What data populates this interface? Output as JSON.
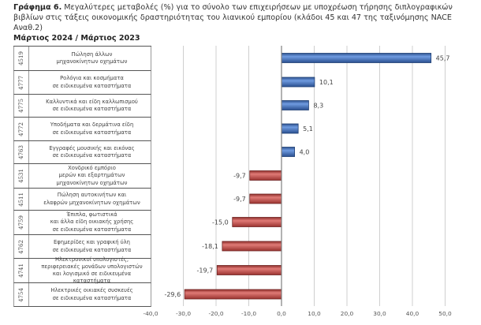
{
  "header": {
    "title_prefix": "Γράφημα 6.",
    "title_text": " Μεγαλύτερες μεταβολές (%) για το σύνολο των επιχειρήσεων με υποχρέωση τήρησης διπλογραφικών βιβλίων στις τάξεις οικονομικής δραστηριότητας του λιανικού εμπορίου (κλάδοι 45 και 47 της ταξινόμησης NACE Αναθ.2)",
    "subtitle": "Μάρτιος 2024 / Μάρτιος 2023"
  },
  "colors": {
    "positive": "#4472c4",
    "negative": "#c0504d",
    "grid": "#cfcfcf",
    "axis": "#7f7f7f"
  },
  "chart_data": {
    "type": "bar",
    "orientation": "horizontal",
    "title": "Μεγαλύτερες μεταβολές (%) — Μάρτιος 2024 / Μάρτιος 2023",
    "xlabel": "",
    "ylabel": "",
    "xlim": [
      -40,
      50
    ],
    "grid": true,
    "xticks": [
      "-40,0",
      "-30,0",
      "-20,0",
      "-10,0",
      "0,0",
      "10,0",
      "20,0",
      "30,0",
      "40,0",
      "50,0"
    ],
    "xtick_values": [
      -40,
      -30,
      -20,
      -10,
      0,
      10,
      20,
      30,
      40,
      50
    ],
    "categories": [
      {
        "code": "4519",
        "label": "Πώληση άλλων\nμηχανοκίνητων οχημάτων"
      },
      {
        "code": "4777",
        "label": "Ρολόγια και κοσμήματα\nσε ειδικευμένα καταστήματα"
      },
      {
        "code": "4775",
        "label": "Καλλυντικά και είδη καλλωπισμού\nσε ειδικευμένα καταστήματα"
      },
      {
        "code": "4772",
        "label": "Υποδήματα και δερμάτινα είδη\nσε ειδικευμένα καταστήματα"
      },
      {
        "code": "4763",
        "label": "Εγγραφές μουσικής και εικόνας\nσε ειδικευμένα καταστήματα"
      },
      {
        "code": "4531",
        "label": "Χονδρικό εμπόριο\nμερών και εξαρτημάτων\nμηχανοκίνητων οχημάτων"
      },
      {
        "code": "4511",
        "label": "Πώληση αυτοκινήτων και\nελαφρών μηχανοκίνητων οχημάτων"
      },
      {
        "code": "4759",
        "label": "Έπιπλα, φωτιστικά\nκαι άλλα είδη οικιακής χρήσης\nσε ειδικευμένα καταστήματα"
      },
      {
        "code": "4762",
        "label": "Εφημερίδες και γραφική ύλη\nσε ειδικευμένα καταστήματα"
      },
      {
        "code": "4741",
        "label": "Ηλεκτρονικοί υπολογιστές,\nπεριφερειακές μονάδων υπολογιστών\nκαι λογισμικό σε ειδικευμένα καταστήματα"
      },
      {
        "code": "4754",
        "label": "Ηλεκτρικές οικιακές συσκευές\nσε ειδικευμένα καταστήματα"
      }
    ],
    "values": [
      45.7,
      10.1,
      8.3,
      5.1,
      4.0,
      -9.7,
      -9.7,
      -15.0,
      -18.1,
      -19.7,
      -29.6
    ],
    "value_labels": [
      "45,7",
      "10,1",
      "8,3",
      "5,1",
      "4,0",
      "-9,7",
      "-9,7",
      "-15,0",
      "-18,1",
      "-19,7",
      "-29,6"
    ]
  }
}
